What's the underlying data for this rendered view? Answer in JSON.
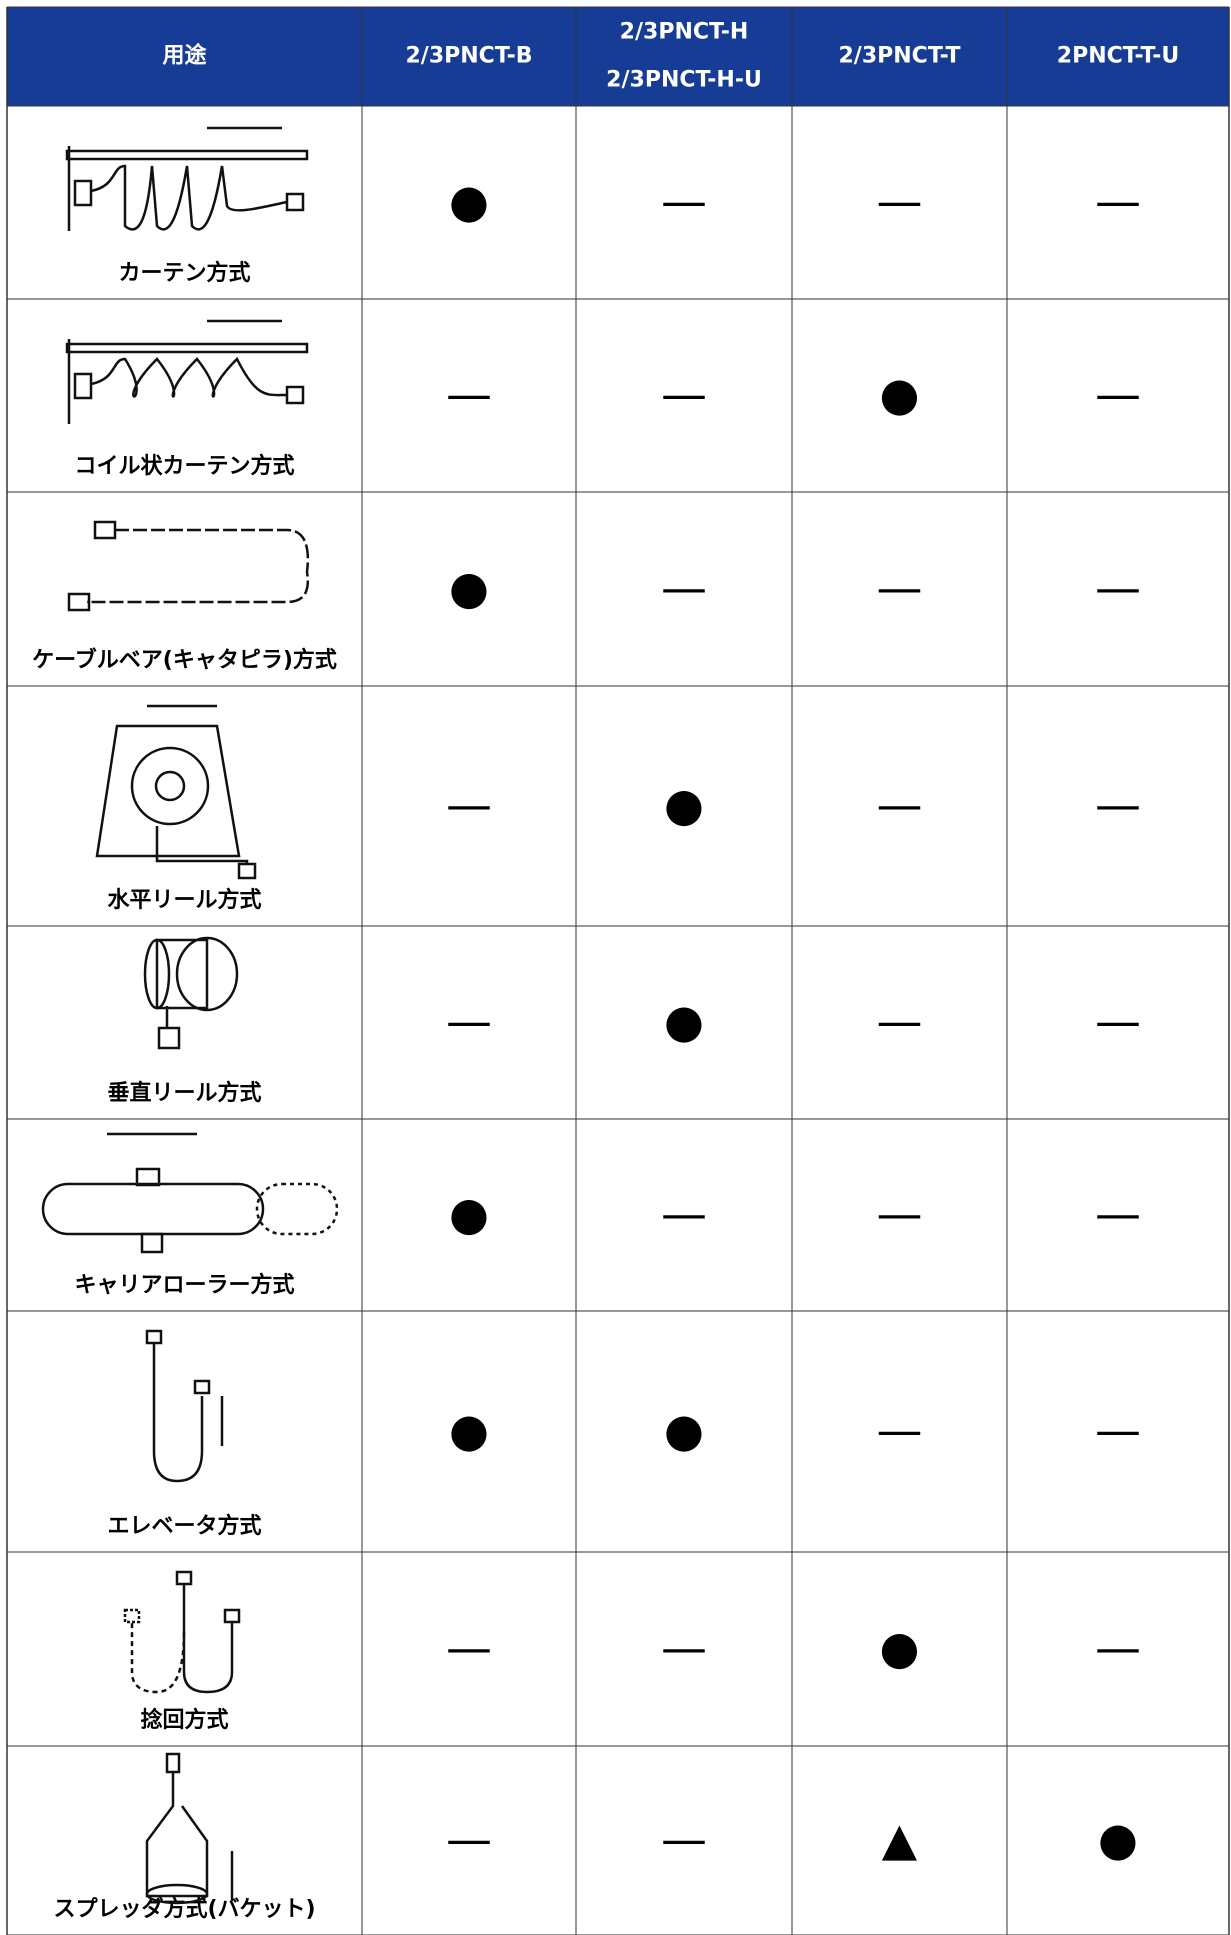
{
  "header": [
    [
      "用途"
    ],
    [
      "2/3PNCT-B"
    ],
    [
      "2/3PNCT-H",
      "2/3PNCT-H-U"
    ],
    [
      "2/3PNCT-T"
    ],
    [
      "2PNCT-T-U"
    ]
  ],
  "rows": [
    {
      "label": "カーテン方式",
      "marks": [
        "●",
        "—",
        "—",
        "—"
      ]
    },
    {
      "label": "コイル状カーテン方式",
      "marks": [
        "—",
        "—",
        "●",
        "—"
      ]
    },
    {
      "label": "ケーブルベア(キャタピラ)方式",
      "marks": [
        "●",
        "—",
        "—",
        "—"
      ]
    },
    {
      "label": "水平リール方式",
      "marks": [
        "—",
        "●",
        "—",
        "—"
      ]
    },
    {
      "label": "垂直リール方式",
      "marks": [
        "—",
        "●",
        "—",
        "—"
      ]
    },
    {
      "label": "キャリアローラー方式",
      "marks": [
        "●",
        "—",
        "—",
        "—"
      ]
    },
    {
      "label": "エレベータ方式",
      "marks": [
        "●",
        "●",
        "—",
        "—"
      ]
    },
    {
      "label": "捻回方式",
      "marks": [
        "—",
        "—",
        "●",
        "—"
      ]
    },
    {
      "label": "スプレッダ方式(バケット)",
      "marks": [
        "—",
        "—",
        "▲",
        "●"
      ]
    }
  ]
}
